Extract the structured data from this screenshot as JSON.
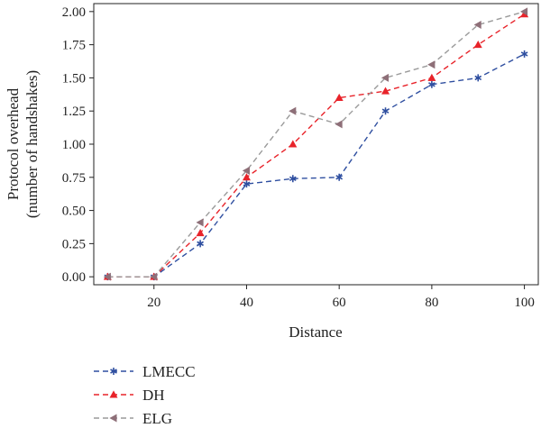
{
  "chart_data": {
    "type": "line",
    "x": [
      10,
      20,
      30,
      40,
      50,
      60,
      70,
      80,
      90,
      100
    ],
    "xlabel": "Distance",
    "ylabel": [
      "Protocol overhead",
      "(number of handshakes)"
    ],
    "xlim": [
      7,
      103
    ],
    "ylim": [
      -0.06,
      2.06
    ],
    "xticks": [
      20,
      40,
      60,
      80,
      100
    ],
    "yticks": [
      0.0,
      0.25,
      0.5,
      0.75,
      1.0,
      1.25,
      1.5,
      1.75,
      2.0
    ],
    "ytick_labels": [
      "0.00",
      "0.25",
      "0.50",
      "0.75",
      "1.00",
      "1.25",
      "1.50",
      "1.75",
      "2.00"
    ],
    "grid": false,
    "legend_placement": "bottom-left, below plot",
    "series": [
      {
        "name": "LMECC",
        "color": "#2f4fa0",
        "marker": "star",
        "line_style": "dashed",
        "values": [
          0.0,
          0.0,
          0.25,
          0.7,
          0.74,
          0.75,
          1.25,
          1.45,
          1.5,
          1.68
        ]
      },
      {
        "name": "DH",
        "color": "#e8232a",
        "marker": "triangle-up",
        "line_style": "dashed",
        "values": [
          0.0,
          0.0,
          0.33,
          0.75,
          1.0,
          1.35,
          1.4,
          1.5,
          1.75,
          1.98
        ]
      },
      {
        "name": "ELG",
        "color": "#9a9a9a",
        "marker": "triangle-left",
        "line_style": "dashed",
        "marker_color": "#8e6f78",
        "values": [
          0.0,
          0.0,
          0.41,
          0.8,
          1.25,
          1.15,
          1.5,
          1.6,
          1.9,
          2.0
        ]
      }
    ]
  }
}
